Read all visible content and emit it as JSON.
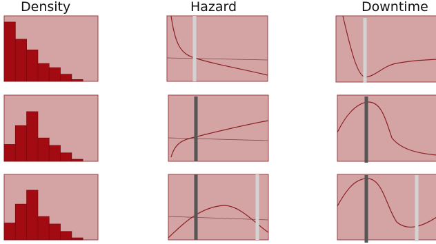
{
  "headers": {
    "density": "Density",
    "hazard": "Hazard",
    "downtime": "Downtime"
  },
  "colors": {
    "panel_fill": "#d4a3a4",
    "panel_border": "#9b3d40",
    "bar_fill": "#a30b12",
    "bar_stroke": "#7d080d",
    "curve": "#8b1f24",
    "reference_line": "#7a4a4c",
    "marker_dark": "#555555",
    "marker_light": "#d3d3d3"
  },
  "density_bars": {
    "row1": [
      1.0,
      0.71,
      0.53,
      0.3,
      0.23,
      0.12,
      0.03
    ],
    "row2": [
      0.34,
      0.72,
      1.0,
      0.47,
      0.32,
      0.17,
      0.04
    ],
    "row3": [
      0.34,
      0.72,
      1.0,
      0.47,
      0.32,
      0.17,
      0.04
    ]
  }
}
